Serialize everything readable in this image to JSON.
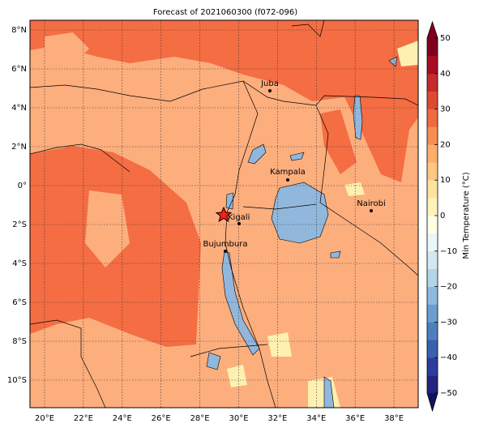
{
  "title": "Forecast of 2021060300 (f072-096)",
  "map": {
    "lon_labels": [
      "20°E",
      "22°E",
      "24°E",
      "26°E",
      "28°E",
      "30°E",
      "32°E",
      "34°E",
      "36°E",
      "38°E"
    ],
    "lat_labels": [
      "8°N",
      "6°N",
      "4°N",
      "2°N",
      "0°",
      "2°S",
      "4°S",
      "6°S",
      "8°S",
      "10°S"
    ],
    "cities": [
      "Juba",
      "Kampala",
      "Nairobi",
      "Kigali",
      "Bujumbura"
    ]
  },
  "colorbar": {
    "label": "Min Temperature (°C)",
    "ticks": [
      "50",
      "40",
      "30",
      "20",
      "10",
      "0",
      "−10",
      "−20",
      "−30",
      "−40",
      "−50"
    ]
  }
}
